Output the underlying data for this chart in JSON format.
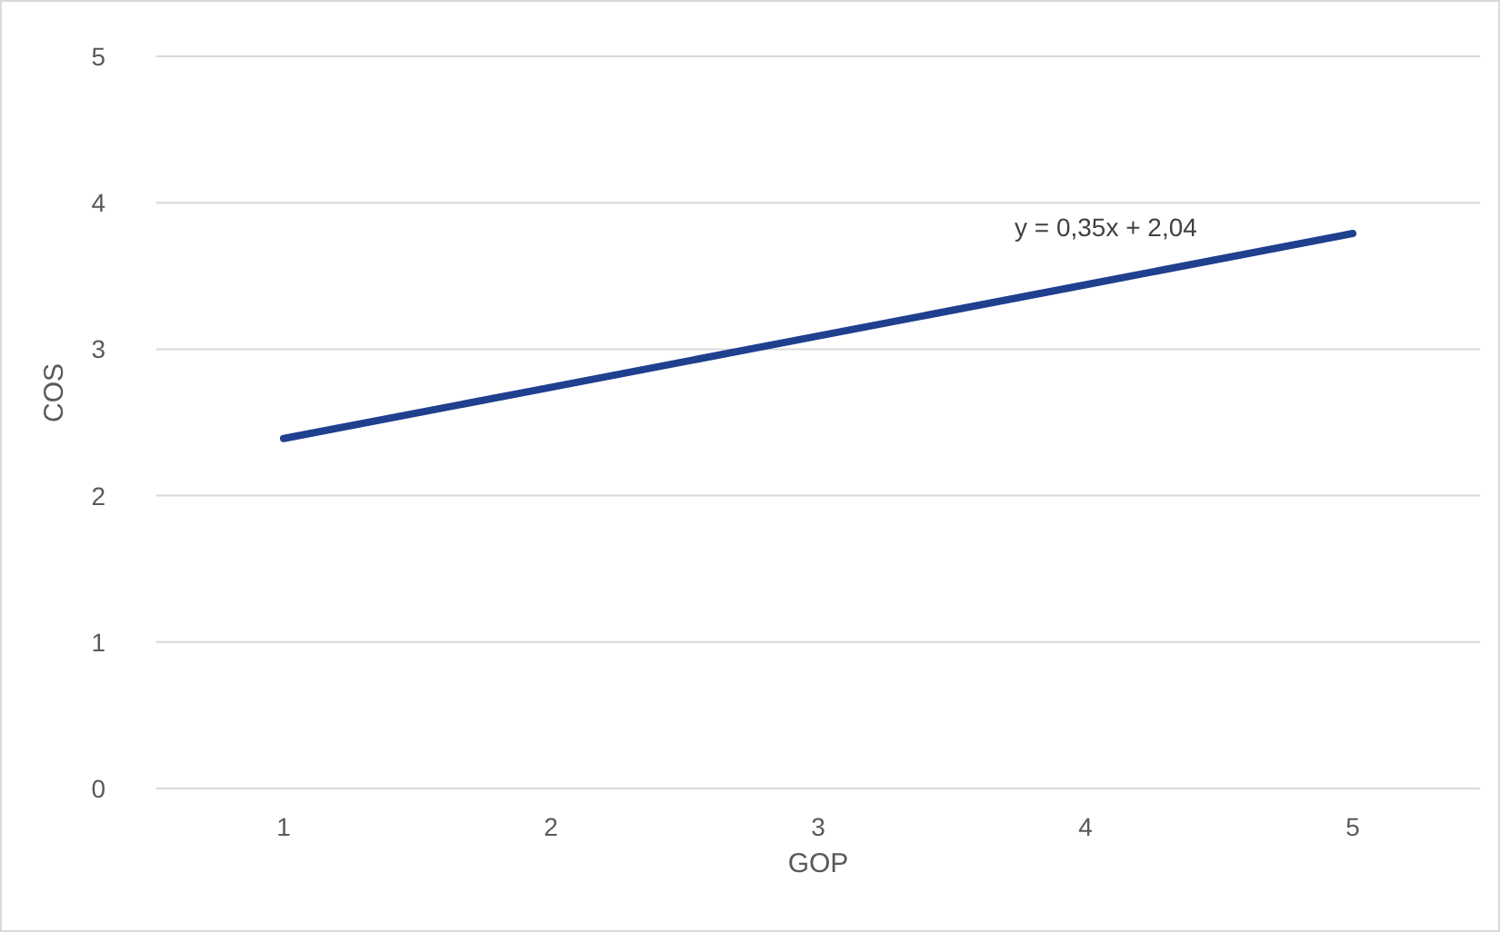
{
  "chart_data": {
    "type": "line",
    "xlabel": "GOP",
    "ylabel": "COS",
    "categories": [
      "1",
      "2",
      "3",
      "4",
      "5"
    ],
    "series": [
      {
        "color": "#1f3f8f",
        "values": [
          2.39,
          2.74,
          3.09,
          3.44,
          3.79
        ]
      }
    ],
    "ylim": [
      0,
      5
    ],
    "yticks": [
      0,
      1,
      2,
      3,
      4,
      5
    ],
    "grid": "y",
    "marker": "none",
    "line_style": "solid",
    "annotations": [
      "y = 0,35x + 2,04"
    ]
  }
}
